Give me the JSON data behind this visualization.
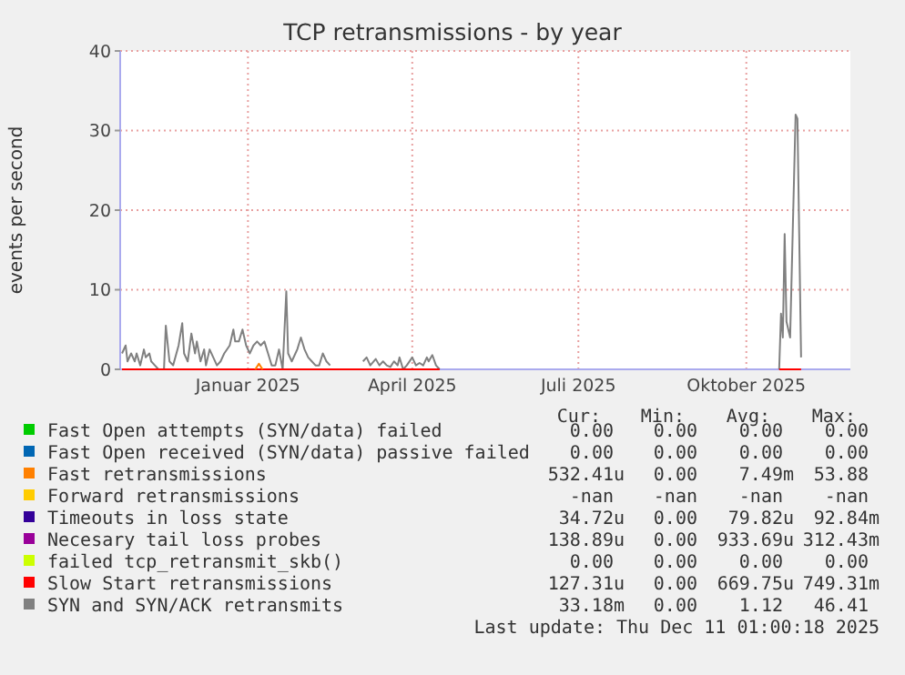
{
  "chart_data": {
    "type": "line",
    "title": "TCP retransmissions - by year",
    "ylabel": "events per second",
    "xlim": [
      "2024-11-06",
      "2025-12-11"
    ],
    "xticks": [
      {
        "value": "2025-01-15",
        "label": "Januar 2025"
      },
      {
        "value": "2025-04-15",
        "label": "April 2025"
      },
      {
        "value": "2025-07-15",
        "label": "Juli 2025"
      },
      {
        "value": "2025-10-15",
        "label": "Oktober 2025"
      }
    ],
    "ylim": [
      0,
      40
    ],
    "yticks": [
      0,
      10,
      20,
      30,
      40
    ],
    "grid": true,
    "legend": "bottom",
    "marker": "none",
    "line_style": "solid",
    "series": [
      {
        "name": "Fast Open attempts (SYN/data) failed",
        "color": "#00cc00"
      },
      {
        "name": "Fast Open received (SYN/data) passive failed",
        "color": "#0066b3"
      },
      {
        "name": "Fast retransmissions",
        "color": "#ff8000",
        "x": [
          "2025-01-19",
          "2025-01-21",
          "2025-01-23"
        ],
        "values": [
          0,
          0.7,
          0
        ]
      },
      {
        "name": "Forward retransmissions",
        "color": "#ffcc00"
      },
      {
        "name": "Timeouts in loss state",
        "color": "#330099"
      },
      {
        "name": "Necesary tail loss probes",
        "color": "#990099"
      },
      {
        "name": "failed tcp_retransmit_skb()",
        "color": "#ccff00"
      },
      {
        "name": "Slow Start retransmissions",
        "color": "#ff0000",
        "x": [
          "2024-11-07",
          "2025-04-30",
          "2025-05-05",
          "2025-11-02",
          "2025-11-14"
        ],
        "values": [
          0,
          0,
          null,
          0,
          0
        ]
      },
      {
        "name": "SYN and SYN/ACK retransmits",
        "color": "#808080",
        "x": [
          "2024-11-07",
          "2024-11-09",
          "2024-11-10",
          "2024-11-12",
          "2024-11-14",
          "2024-11-15",
          "2024-11-17",
          "2024-11-19",
          "2024-11-20",
          "2024-11-22",
          "2024-11-23",
          "2024-11-25",
          "2024-11-27",
          "2024-11-30",
          "2024-12-01",
          "2024-12-03",
          "2024-12-05",
          "2024-12-08",
          "2024-12-10",
          "2024-12-11",
          "2024-12-13",
          "2024-12-15",
          "2024-12-17",
          "2024-12-18",
          "2024-12-20",
          "2024-12-22",
          "2024-12-23",
          "2024-12-25",
          "2024-12-27",
          "2024-12-29",
          "2024-12-31",
          "2025-01-02",
          "2025-01-05",
          "2025-01-07",
          "2025-01-08",
          "2025-01-10",
          "2025-01-12",
          "2025-01-14",
          "2025-01-16",
          "2025-01-18",
          "2025-01-20",
          "2025-01-22",
          "2025-01-24",
          "2025-01-26",
          "2025-01-28",
          "2025-01-30",
          "2025-02-01",
          "2025-02-03",
          "2025-02-05",
          "2025-02-06",
          "2025-02-08",
          "2025-02-10",
          "2025-02-11",
          "2025-02-13",
          "2025-02-15",
          "2025-02-17",
          "2025-02-19",
          "2025-02-21",
          "2025-02-23",
          "2025-02-25",
          "2025-02-27",
          "2025-03-01",
          "2025-03-06",
          "2025-03-19",
          "2025-03-21",
          "2025-03-23",
          "2025-03-26",
          "2025-03-28",
          "2025-03-30",
          "2025-04-01",
          "2025-04-03",
          "2025-04-05",
          "2025-04-07",
          "2025-04-08",
          "2025-04-10",
          "2025-04-12",
          "2025-04-15",
          "2025-04-17",
          "2025-04-19",
          "2025-04-21",
          "2025-04-23",
          "2025-04-24",
          "2025-04-26",
          "2025-04-28",
          "2025-04-30",
          "2025-05-05",
          "2025-11-02",
          "2025-11-03",
          "2025-11-04",
          "2025-11-05",
          "2025-11-06",
          "2025-11-08",
          "2025-11-11",
          "2025-11-12",
          "2025-11-14"
        ],
        "values": [
          2,
          3,
          1,
          2,
          1,
          2,
          0.5,
          2.5,
          1.5,
          2,
          1,
          0.5,
          0,
          0,
          5.5,
          1,
          0.5,
          3,
          5.8,
          2,
          1,
          4.5,
          2,
          3.5,
          1,
          2.5,
          0.5,
          2.5,
          1.5,
          0.5,
          1,
          2,
          3,
          5,
          3.5,
          3.5,
          5,
          3,
          2,
          3,
          3.5,
          3,
          3.5,
          2,
          0.5,
          0.5,
          2.5,
          0,
          9.8,
          2,
          1,
          2,
          2.5,
          4,
          2.5,
          1.5,
          1,
          0.5,
          0.5,
          2,
          1,
          0.5,
          null,
          1,
          1.5,
          0.5,
          1.3,
          0.5,
          1,
          0.5,
          0.3,
          1,
          0.5,
          1.5,
          0,
          0.5,
          1.5,
          0.5,
          0.8,
          0.5,
          1.5,
          1,
          1.8,
          0.5,
          0,
          null,
          0,
          7,
          4,
          17,
          6,
          4,
          32,
          31.5,
          1.5
        ]
      }
    ],
    "annotations": [
      "Cur:",
      "Min:",
      "Avg:",
      "Max:",
      "0.00",
      "0.00",
      "0.00",
      "0.00",
      "0.00",
      "0.00",
      "0.00",
      "0.00",
      "532.41u",
      "0.00",
      "7.49m",
      "53.88",
      "-nan",
      "-nan",
      "-nan",
      "-nan",
      "34.72u",
      "0.00",
      "79.82u",
      "92.84m",
      "138.89u",
      "0.00",
      "933.69u",
      "312.43m",
      "0.00",
      "0.00",
      "0.00",
      "0.00",
      "127.31u",
      "0.00",
      "669.75u",
      "749.31m",
      "33.18m",
      "0.00",
      "1.12",
      "46.41",
      "Last update: Thu Dec 11 01:00:18 2025"
    ]
  }
}
